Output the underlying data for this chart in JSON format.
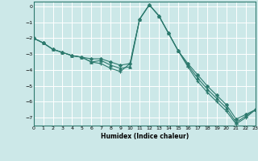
{
  "title": "",
  "xlabel": "Humidex (Indice chaleur)",
  "bg_color": "#cce8e8",
  "grid_color": "#ffffff",
  "line_color": "#2d7a6e",
  "marker_color": "#2d7a6e",
  "xlim": [
    0,
    23
  ],
  "ylim": [
    -7.5,
    0.3
  ],
  "yticks": [
    0,
    -1,
    -2,
    -3,
    -4,
    -5,
    -6,
    -7
  ],
  "xticks": [
    0,
    1,
    2,
    3,
    4,
    5,
    6,
    7,
    8,
    9,
    10,
    11,
    12,
    13,
    14,
    15,
    16,
    17,
    18,
    19,
    20,
    21,
    22,
    23
  ],
  "series": [
    {
      "x": [
        0,
        1,
        2,
        3,
        4,
        5,
        6,
        7,
        8,
        9,
        10,
        11,
        12,
        13,
        14,
        15,
        16,
        17,
        18,
        19,
        20,
        21,
        22,
        23
      ],
      "y": [
        -2.0,
        -2.3,
        -2.7,
        -2.9,
        -3.1,
        -3.2,
        -3.3,
        -3.3,
        -3.5,
        -3.7,
        -3.6,
        -0.8,
        0.1,
        -0.6,
        -1.7,
        -2.8,
        -3.6,
        -4.3,
        -5.0,
        -5.6,
        -6.2,
        -7.1,
        -6.8,
        -6.5
      ],
      "marker": "D",
      "markersize": 2.0,
      "linewidth": 0.8
    },
    {
      "x": [
        0,
        1,
        2,
        3,
        4,
        5,
        6,
        7,
        8,
        9,
        10,
        11,
        12,
        13,
        14,
        15,
        16,
        17,
        18,
        19,
        20,
        21,
        22,
        23
      ],
      "y": [
        -2.0,
        -2.3,
        -2.7,
        -2.9,
        -3.1,
        -3.2,
        -3.5,
        -3.4,
        -3.7,
        -3.9,
        -3.8,
        -0.8,
        0.1,
        -0.6,
        -1.7,
        -2.8,
        -3.7,
        -4.5,
        -5.2,
        -5.8,
        -6.4,
        -7.3,
        -6.9,
        -6.5
      ],
      "marker": "^",
      "markersize": 2.5,
      "linewidth": 0.8
    },
    {
      "x": [
        0,
        1,
        2,
        3,
        4,
        5,
        6,
        7,
        8,
        9,
        10,
        11,
        12,
        13,
        14,
        15,
        16,
        17,
        18,
        19,
        20,
        21,
        22,
        23
      ],
      "y": [
        -2.0,
        -2.3,
        -2.7,
        -2.9,
        -3.1,
        -3.2,
        -3.5,
        -3.6,
        -3.9,
        -4.1,
        -3.6,
        -0.8,
        0.1,
        -0.6,
        -1.7,
        -2.8,
        -3.8,
        -4.7,
        -5.4,
        -6.0,
        -6.6,
        -7.4,
        -7.0,
        -6.5
      ],
      "marker": "+",
      "markersize": 3.0,
      "linewidth": 0.8
    }
  ]
}
